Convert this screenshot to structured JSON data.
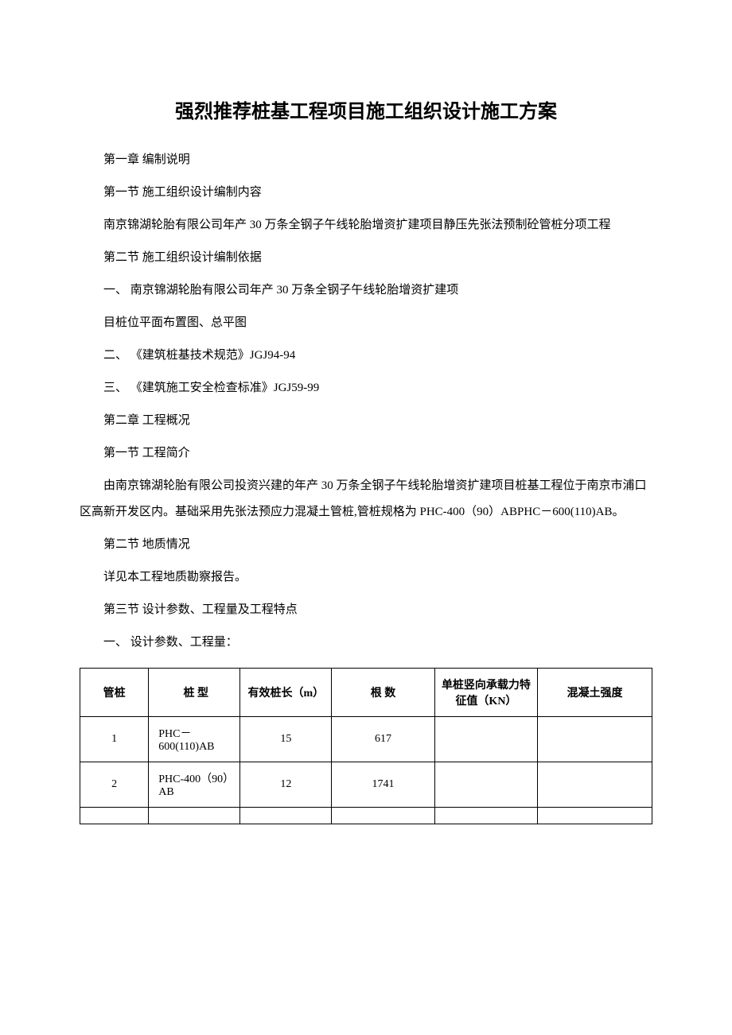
{
  "title": "强烈推荐桩基工程项目施工组织设计施工方案",
  "paragraphs": [
    "第一章  编制说明",
    "第一节  施工组织设计编制内容",
    "南京锦湖轮胎有限公司年产 30 万条全钢子午线轮胎增资扩建项目静压先张法预制砼管桩分项工程",
    "第二节  施工组织设计编制依据",
    "一、 南京锦湖轮胎有限公司年产 30 万条全钢子午线轮胎增资扩建项",
    "目桩位平面布置图、总平图",
    "二、 《建筑桩基技术规范》JGJ94-94",
    "三、 《建筑施工安全检查标准》JGJ59-99",
    "第二章  工程概况",
    "第一节  工程简介",
    "由南京锦湖轮胎有限公司投资兴建的年产 30 万条全钢子午线轮胎增资扩建项目桩基工程位于南京市浦口区高新开发区内。基础采用先张法预应力混凝土管桩,管桩规格为 PHC-400（90）ABPHC－600(110)AB。",
    "第二节 地质情况",
    "详见本工程地质勘察报告。",
    "第三节 设计参数、工程量及工程特点",
    "一、 设计参数、工程量："
  ],
  "table": {
    "headers": [
      "管桩",
      "桩 型",
      "有效桩长（m）",
      "根 数",
      "单桩竖向承载力特征值（KN）",
      "混凝土强度"
    ],
    "rows": [
      [
        "1",
        "PHC－600(110)AB",
        "15",
        "617",
        "",
        ""
      ],
      [
        "2",
        "PHC-400（90）AB",
        "12",
        "1741",
        "",
        ""
      ],
      [
        "",
        "",
        "",
        "",
        "",
        ""
      ]
    ]
  }
}
